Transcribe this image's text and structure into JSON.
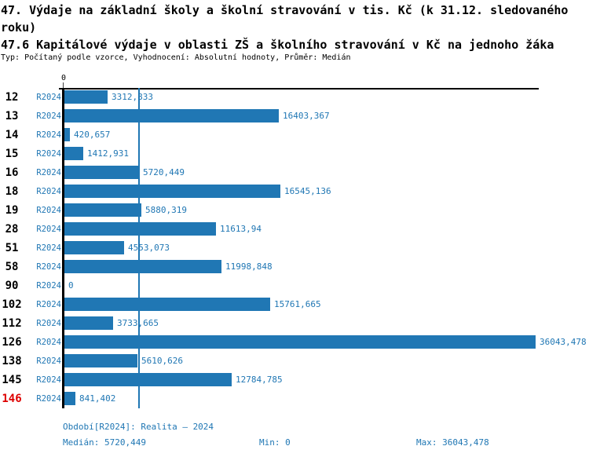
{
  "header": {
    "title": "47. Výdaje na základní školy a školní stravování v tis. Kč (k 31.12. sledovaného roku)",
    "subtitle": "47.6 Kapitálové výdaje v oblasti ZŠ a školního stravování v Kč na jednoho žáka",
    "meta": "Typ: Počítaný podle vzorce, Vyhodnocení: Absolutní hodnoty, Průměr: Medián"
  },
  "chart_data": {
    "type": "bar",
    "orientation": "horizontal",
    "axis": {
      "zero_label": "0"
    },
    "categories": [
      "12",
      "13",
      "14",
      "15",
      "16",
      "18",
      "19",
      "28",
      "51",
      "58",
      "90",
      "102",
      "112",
      "126",
      "138",
      "145",
      "146"
    ],
    "series": [
      {
        "name": "R2024",
        "values": [
          3312.833,
          16403.367,
          420.657,
          1412.931,
          5720.449,
          16545.136,
          5880.319,
          11613.94,
          4553.073,
          11998.848,
          0,
          15761.665,
          3733.665,
          36043.478,
          5610.626,
          12784.785,
          841.402
        ]
      }
    ],
    "value_labels": [
      "3312,833",
      "16403,367",
      "420,657",
      "1412,931",
      "5720,449",
      "16545,136",
      "5880,319",
      "11613,94",
      "4553,073",
      "11998,848",
      "0",
      "15761,665",
      "3733,665",
      "36043,478",
      "5610,626",
      "12784,785",
      "841,402"
    ],
    "highlighted_categories": [
      "146"
    ],
    "median": 5720.449,
    "xlim": [
      0,
      36043.478
    ],
    "median_reference_line": true,
    "legend_position": "none"
  },
  "footer": {
    "period": "Období[R2024]: Realita – 2024",
    "median": "Medián: 5720,449",
    "min": "Min: 0",
    "max": "Max: 36043,478"
  },
  "colors": {
    "bar": "#2077b4",
    "text_blue": "#2077b4",
    "highlight_red": "#dd0000",
    "axis": "#000000"
  }
}
